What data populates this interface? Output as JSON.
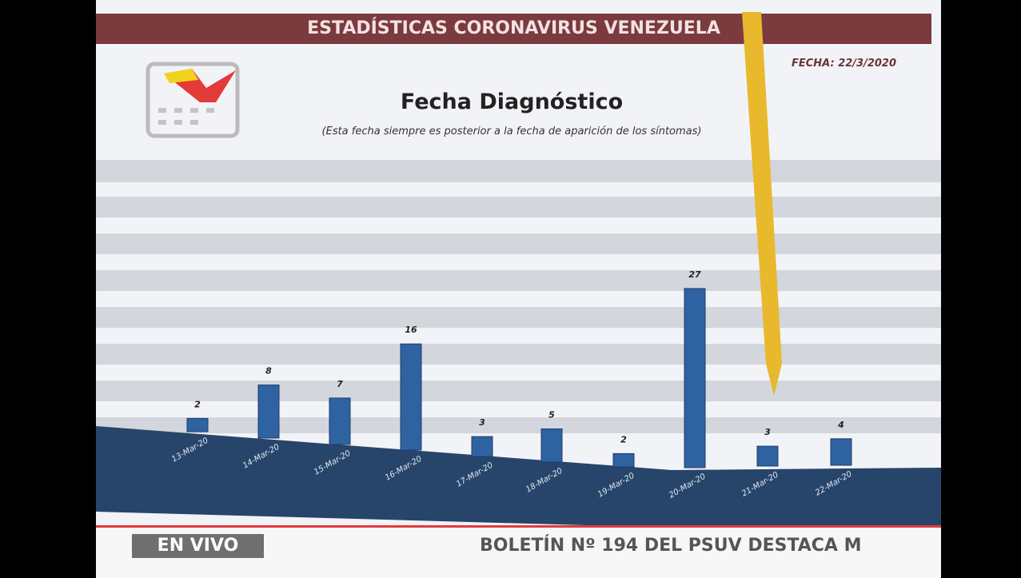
{
  "header": "ESTADÍSTICAS CORONAVIRUS VENEZUELA",
  "date": "FECHA: 22/3/2020",
  "live": "EN VIVO",
  "ticker": "BOLETÍN Nº 194 DEL PSUV DESTACA M",
  "chart_data": {
    "type": "bar",
    "title": "Fecha Diagnóstico",
    "subtitle": "(Esta fecha siempre es posterior a la fecha de aparición de los síntomas)",
    "categories": [
      "13-Mar-20",
      "14-Mar-20",
      "15-Mar-20",
      "16-Mar-20",
      "17-Mar-20",
      "18-Mar-20",
      "19-Mar-20",
      "20-Mar-20",
      "21-Mar-20",
      "22-Mar-20"
    ],
    "values": [
      2,
      8,
      7,
      16,
      3,
      5,
      2,
      27,
      3,
      4
    ],
    "color": "#2f62a0"
  }
}
